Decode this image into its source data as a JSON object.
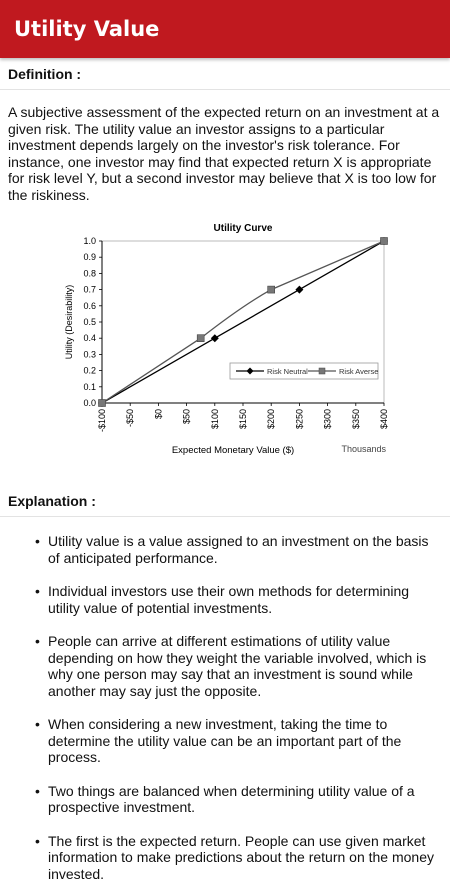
{
  "appbar": {
    "title": "Utility Value"
  },
  "definition": {
    "heading": "Definition :",
    "text": "A subjective assessment of the expected return on an investment at a given risk. The utility value an investor assigns to a particular investment depends largely on the investor's risk tolerance. For instance, one investor may find that expected return X is appropriate for risk level Y, but a second investor may believe that X is too low for the riskiness."
  },
  "chart_data": {
    "type": "line",
    "title": "Utility Curve",
    "xlabel": "Expected Monetary Value ($)",
    "ylabel": "Utility (Desirability)",
    "x_unit_note": "Thousands",
    "x_tick_labels": [
      "-$100",
      "-$50",
      "$0",
      "$50",
      "$100",
      "$150",
      "$200",
      "$250",
      "$300",
      "$350",
      "$400"
    ],
    "y_tick_labels": [
      "0.0",
      "0.1",
      "0.2",
      "0.3",
      "0.4",
      "0.5",
      "0.6",
      "0.7",
      "0.8",
      "0.9",
      "1.0"
    ],
    "xlim": [
      -100,
      400
    ],
    "ylim": [
      0,
      1
    ],
    "grid": false,
    "legend_position": "bottom-right",
    "series": [
      {
        "name": "Risk Neutral",
        "color": "#000000",
        "marker": "diamond",
        "x": [
          -100,
          100,
          250,
          400
        ],
        "y": [
          0.0,
          0.4,
          0.7,
          1.0
        ]
      },
      {
        "name": "Risk Averse",
        "color": "#555555",
        "marker": "square",
        "x": [
          -100,
          75,
          200,
          400
        ],
        "y": [
          0.0,
          0.4,
          0.7,
          1.0
        ]
      }
    ]
  },
  "explanation": {
    "heading": "Explanation :",
    "items": [
      "Utility value is a value assigned to an investment on the basis of anticipated performance.",
      "Individual investors use their own methods for determining utility value of potential investments.",
      "People can arrive at different estimations of utility value depending on how they weight the variable involved, which is why one person may say that an investment is sound while another may say just the opposite.",
      "When considering a new investment, taking the time to determine the utility value can be an important part of the process.",
      "Two things are balanced when determining utility value of a prospective investment.",
      "The first is the expected return. People can use given market information to make predictions about the return on the money invested."
    ]
  }
}
